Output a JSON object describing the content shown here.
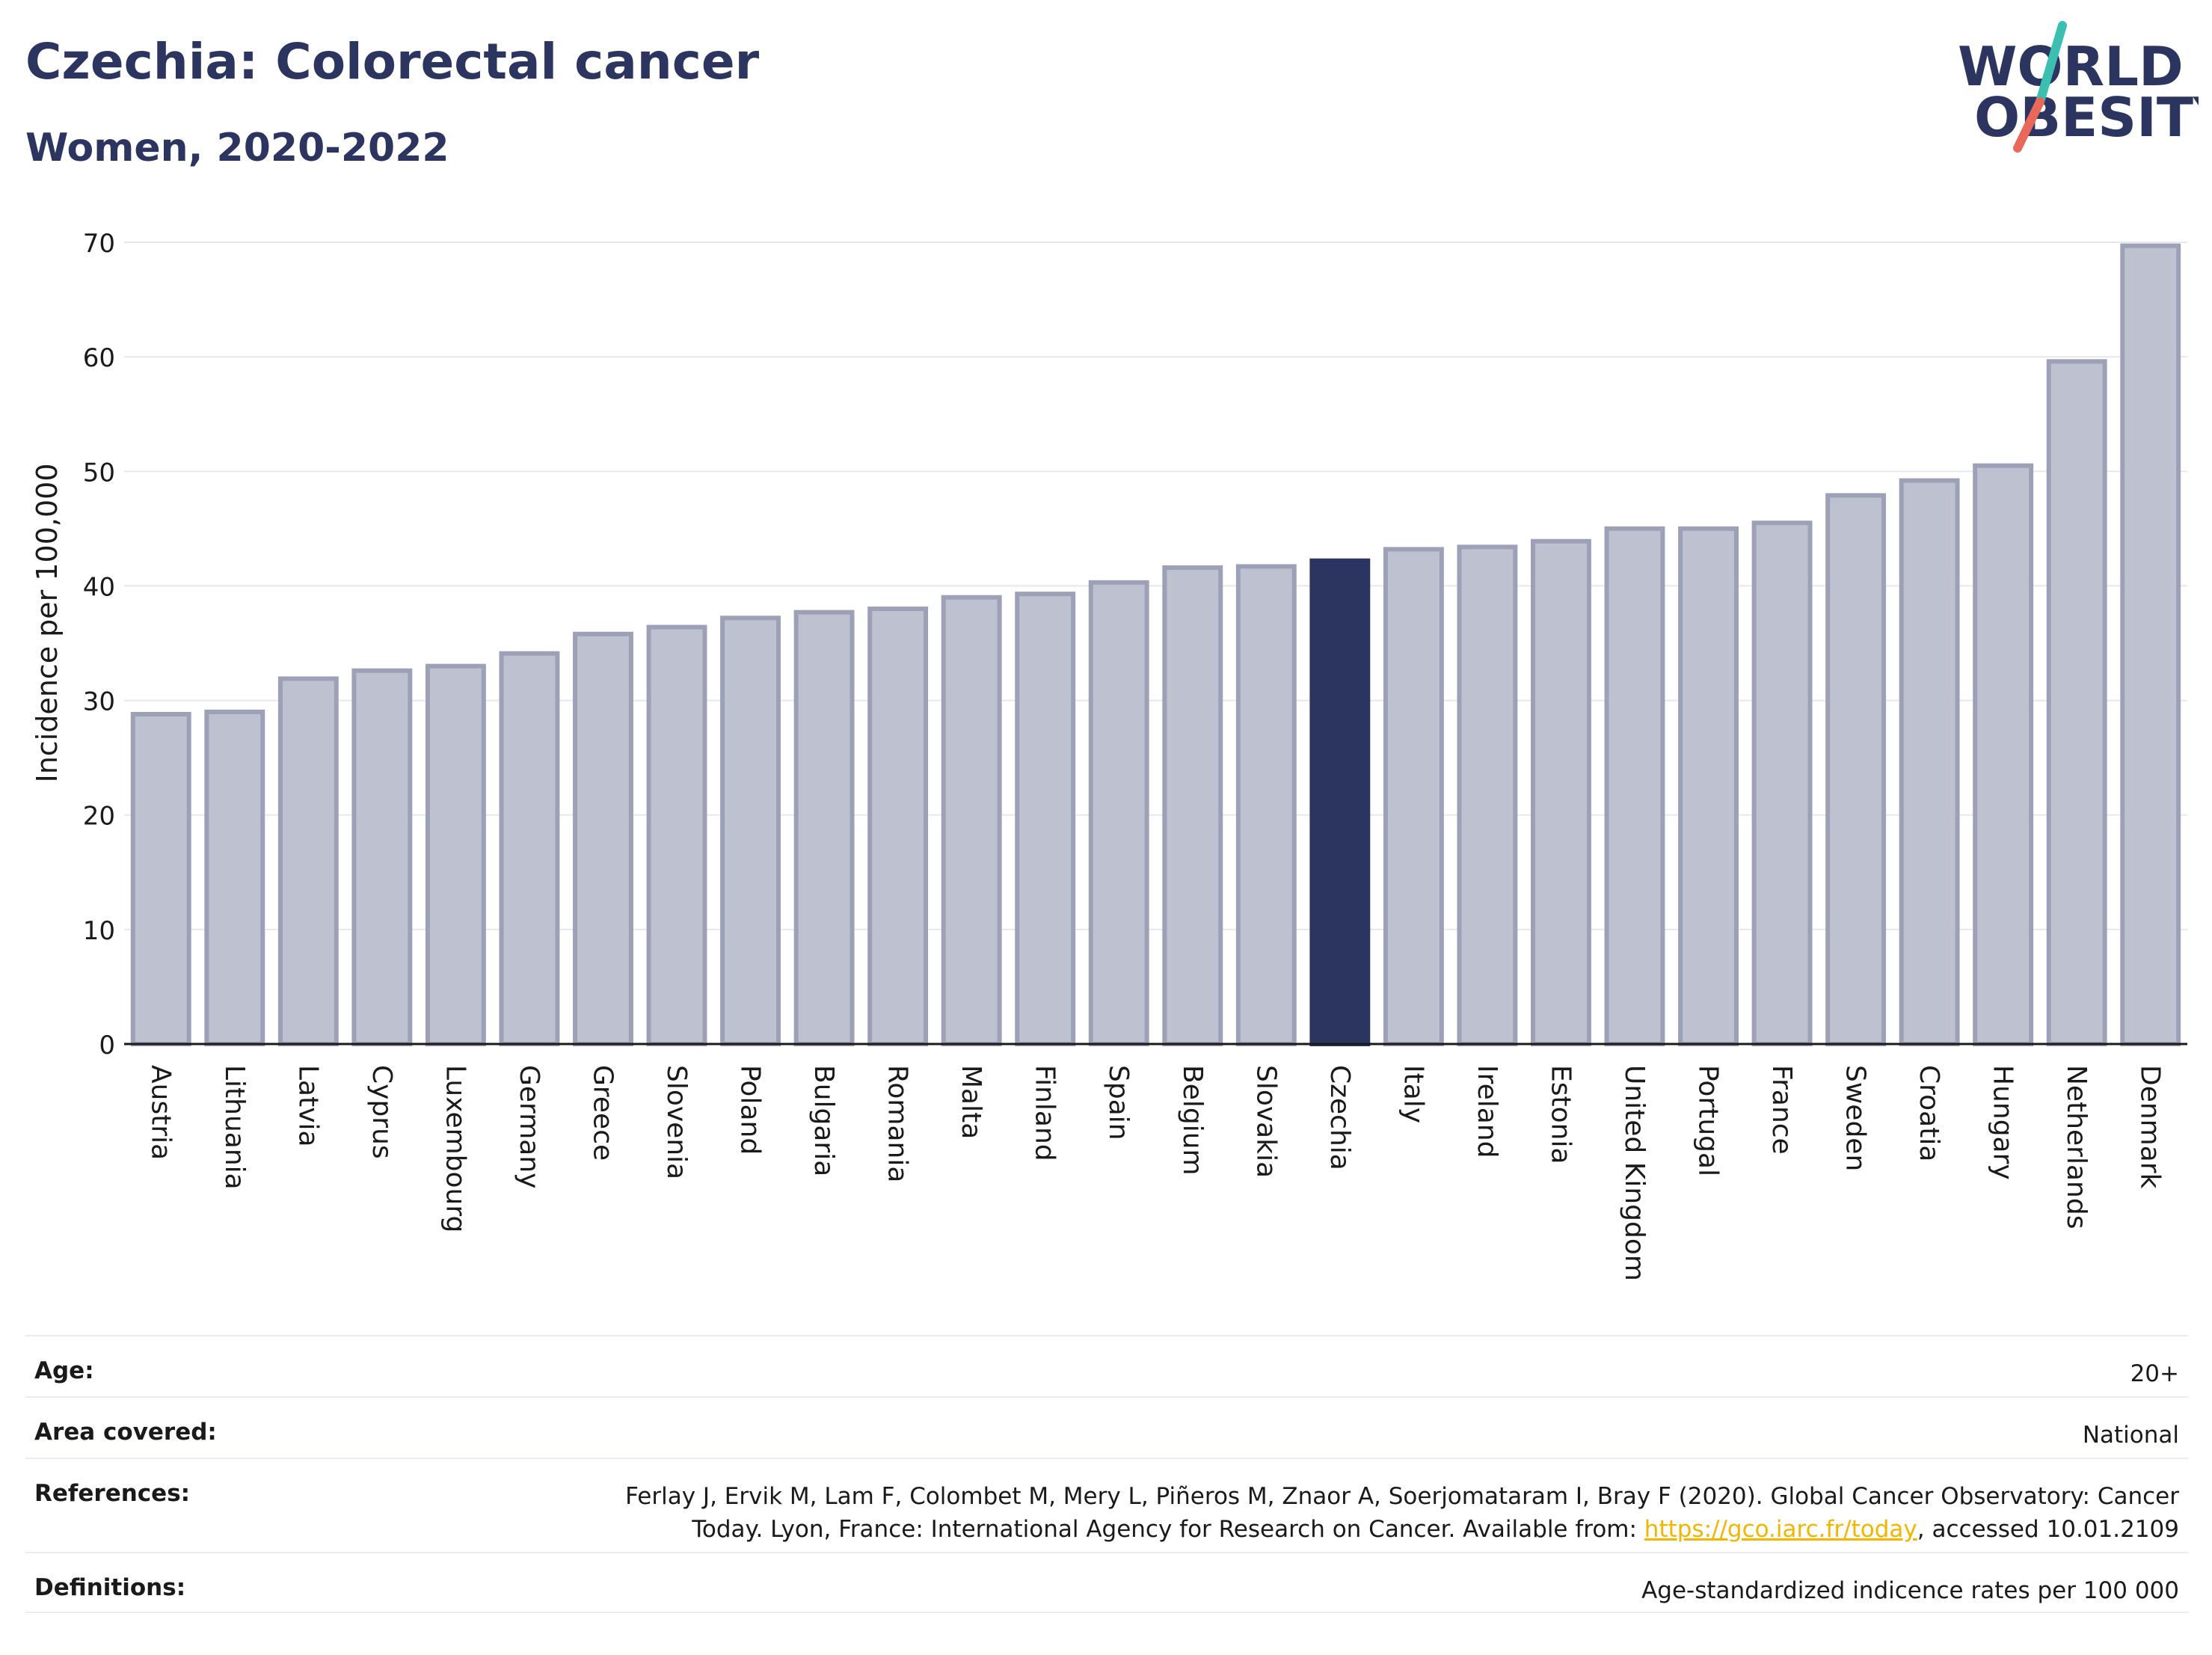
{
  "header": {
    "title": "Czechia: Colorectal cancer",
    "subtitle": "Women, 2020-2022"
  },
  "logo": {
    "line1": "WORLD",
    "line2": "OBESITY",
    "colors": {
      "text": "#2b3560",
      "slash_top": "#3bbfb1",
      "slash_bottom": "#e8685a"
    }
  },
  "colors": {
    "bar_fill": "#bec1cf",
    "bar_outline": "#9ca1b8",
    "highlight": "#2b3560",
    "grid": "#e6e8ee"
  },
  "chart_data": {
    "type": "bar",
    "ylabel": "Incidence per 100,000",
    "ylim": [
      0,
      70
    ],
    "yticks": [
      0,
      10,
      20,
      30,
      40,
      50,
      60,
      70
    ],
    "grid": true,
    "highlight": "Czechia",
    "categories": [
      "Austria",
      "Lithuania",
      "Latvia",
      "Cyprus",
      "Luxembourg",
      "Germany",
      "Greece",
      "Slovenia",
      "Poland",
      "Bulgaria",
      "Romania",
      "Malta",
      "Finland",
      "Spain",
      "Belgium",
      "Slovakia",
      "Czechia",
      "Italy",
      "Ireland",
      "Estonia",
      "United Kingdom",
      "Portugal",
      "France",
      "Sweden",
      "Croatia",
      "Hungary",
      "Netherlands",
      "Denmark"
    ],
    "values": [
      28.8,
      29.0,
      31.9,
      32.6,
      33.0,
      34.1,
      35.8,
      36.4,
      37.2,
      37.7,
      38.0,
      39.0,
      39.3,
      40.3,
      41.6,
      41.7,
      42.2,
      43.2,
      43.4,
      43.9,
      45.0,
      45.0,
      45.5,
      47.9,
      49.2,
      50.5,
      59.6,
      69.7
    ]
  },
  "info": {
    "age_label": "Age:",
    "age_value": "20+",
    "area_label": "Area covered:",
    "area_value": "National",
    "references_label": "References:",
    "references_line1": "Ferlay J, Ervik M, Lam F, Colombet M, Mery L, Piñeros M, Znaor A, Soerjomataram I, Bray F (2020). Global Cancer Observatory: Cancer",
    "references_line2_prefix": "Today. Lyon, France: International Agency for Research on Cancer. Available from:",
    "references_link": "https://gco.iarc.fr/today",
    "references_line2_suffix": ", accessed 10.01.2109",
    "definitions_label": "Definitions:",
    "definitions_value": "Age-standardized indicence rates per 100 000"
  }
}
